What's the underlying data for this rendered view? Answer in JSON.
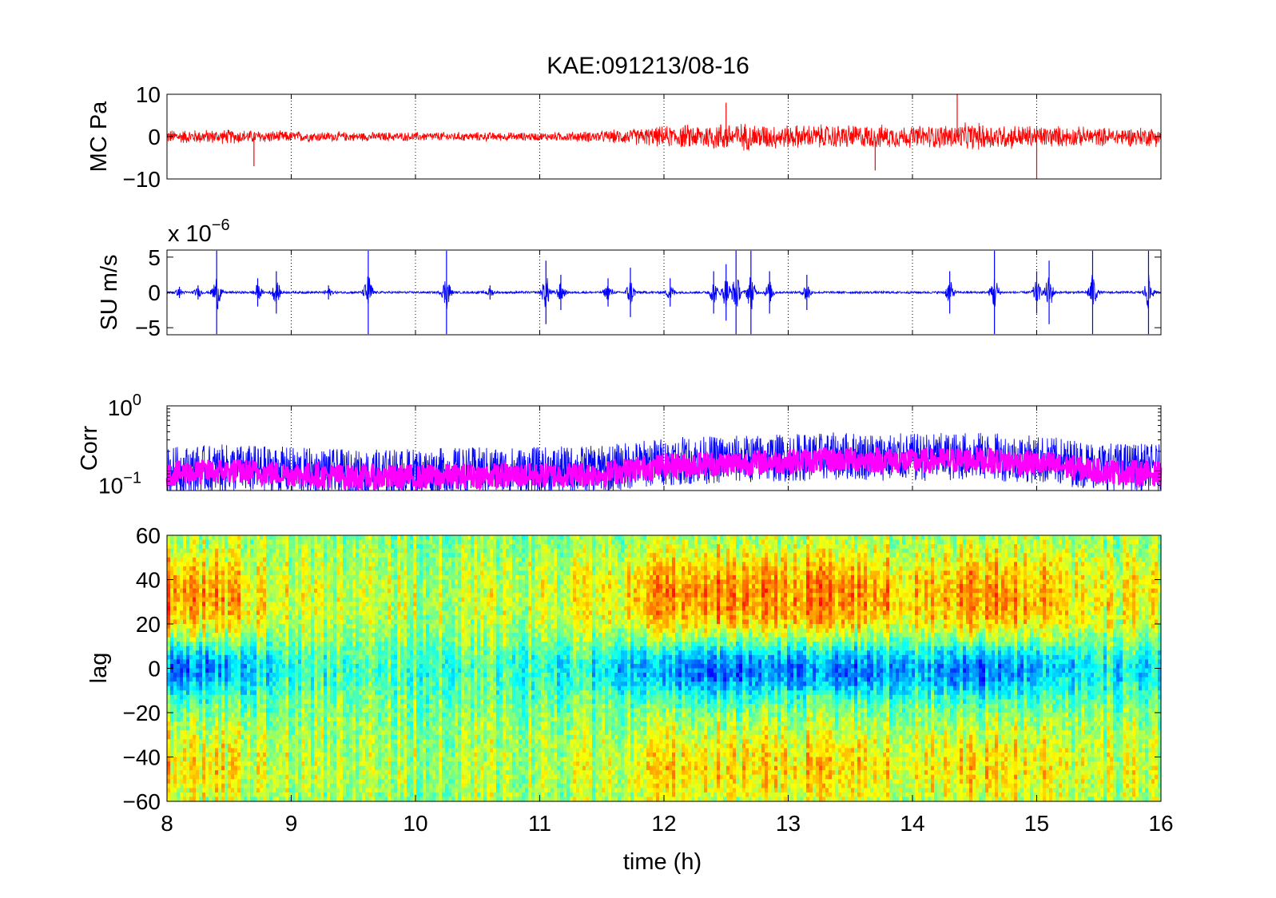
{
  "figure": {
    "title": "KAE:091213/08-16",
    "xlabel": "time (h)",
    "x_ticks": [
      "8",
      "9",
      "10",
      "11",
      "12",
      "13",
      "14",
      "15",
      "16"
    ],
    "xlim": [
      8,
      16
    ]
  },
  "chart_data": [
    {
      "type": "line",
      "ylabel": "MC Pa",
      "ylim": [
        -10,
        10
      ],
      "y_ticks": [
        "10",
        "0",
        "−10"
      ],
      "y_tick_values": [
        10,
        0,
        -10
      ],
      "grid": "vertical dotted at each hour",
      "series": [
        {
          "color": "#ff0000",
          "x": [
            8,
            8.5,
            9,
            9.5,
            10,
            10.5,
            11,
            11.5,
            12,
            12.5,
            13,
            13.5,
            14,
            14.5,
            15,
            15.5,
            16
          ],
          "envelope": [
            1.5,
            1.6,
            1.2,
            1.0,
            1.0,
            1.0,
            0.9,
            1.3,
            2.3,
            3.2,
            2.6,
            2.7,
            2.4,
            3.0,
            2.5,
            2.0,
            2.2
          ]
        }
      ],
      "spikes": [
        {
          "x": 8.7,
          "y": -7
        },
        {
          "x": 12.5,
          "y": 8
        },
        {
          "x": 13.7,
          "y": -8
        },
        {
          "x": 14.36,
          "y": 10
        },
        {
          "x": 15.0,
          "y": -10
        }
      ]
    },
    {
      "type": "line",
      "ylabel": "SU m/s",
      "scale_label": "x 10",
      "scale_exponent": "−6",
      "ylim": [
        -6,
        6
      ],
      "y_ticks": [
        "5",
        "0",
        "−5"
      ],
      "y_tick_values": [
        5,
        0,
        -5
      ],
      "grid": "vertical dotted at each hour",
      "series": [
        {
          "color": "#0000ff",
          "baseline_noise": 0.15,
          "bursts": [
            {
              "x": 8.1,
              "amp": 0.8
            },
            {
              "x": 8.25,
              "amp": 1.0
            },
            {
              "x": 8.4,
              "amp": 6
            },
            {
              "x": 8.73,
              "amp": 2.0
            },
            {
              "x": 8.88,
              "amp": 3.0
            },
            {
              "x": 9.3,
              "amp": 1.0
            },
            {
              "x": 9.62,
              "amp": 6
            },
            {
              "x": 10.25,
              "amp": 6
            },
            {
              "x": 10.6,
              "amp": 1.0
            },
            {
              "x": 11.05,
              "amp": 4.5
            },
            {
              "x": 11.17,
              "amp": 2.5
            },
            {
              "x": 11.55,
              "amp": 2.0
            },
            {
              "x": 11.73,
              "amp": 3.5
            },
            {
              "x": 12.05,
              "amp": 2.0
            },
            {
              "x": 12.4,
              "amp": 3.0
            },
            {
              "x": 12.5,
              "amp": 4.0
            },
            {
              "x": 12.58,
              "amp": 6
            },
            {
              "x": 12.7,
              "amp": 6
            },
            {
              "x": 12.85,
              "amp": 3.0
            },
            {
              "x": 13.15,
              "amp": 2.5
            },
            {
              "x": 14.3,
              "amp": 3.0
            },
            {
              "x": 14.66,
              "amp": 6
            },
            {
              "x": 15.0,
              "amp": 3.0
            },
            {
              "x": 15.1,
              "amp": 4.5
            },
            {
              "x": 15.45,
              "amp": 6
            },
            {
              "x": 15.9,
              "amp": 6
            }
          ]
        }
      ]
    },
    {
      "type": "line",
      "ylabel": "Corr",
      "yscale": "log",
      "ylim": [
        0.05,
        1
      ],
      "y_ticks": [
        {
          "base": "10",
          "exp": "0",
          "value": 1
        },
        {
          "base": "10",
          "exp": "−1",
          "value": 0.1
        }
      ],
      "grid": "vertical dotted at each hour",
      "series": [
        {
          "color": "#0000ff",
          "x": [
            8,
            8.5,
            9,
            9.5,
            10,
            10.5,
            11,
            11.5,
            12,
            12.5,
            13,
            13.5,
            14,
            14.5,
            15,
            15.5,
            16
          ],
          "level": [
            0.1,
            0.11,
            0.1,
            0.09,
            0.095,
            0.1,
            0.1,
            0.105,
            0.14,
            0.15,
            0.16,
            0.17,
            0.16,
            0.17,
            0.15,
            0.12,
            0.11
          ]
        },
        {
          "color": "#ff00ff",
          "x": [
            8,
            8.5,
            9,
            9.5,
            10,
            10.5,
            11,
            11.5,
            12,
            12.5,
            13,
            13.5,
            14,
            14.5,
            15,
            15.5,
            16
          ],
          "level": [
            0.09,
            0.1,
            0.09,
            0.08,
            0.08,
            0.085,
            0.085,
            0.09,
            0.12,
            0.13,
            0.14,
            0.15,
            0.14,
            0.15,
            0.13,
            0.1,
            0.09
          ]
        }
      ]
    },
    {
      "type": "heatmap",
      "ylabel": "lag",
      "ylim": [
        -60,
        60
      ],
      "y_ticks": [
        "60",
        "40",
        "20",
        "0",
        "−20",
        "−40",
        "−60"
      ],
      "y_tick_values": [
        60,
        40,
        20,
        0,
        -20,
        -40,
        -60
      ],
      "colormap": "jet",
      "intensity_by_hour": {
        "x": [
          8,
          8.5,
          9,
          9.5,
          10,
          10.5,
          11,
          11.5,
          12,
          12.5,
          13,
          13.5,
          14,
          14.5,
          15,
          15.5,
          16
        ],
        "strength": [
          0.9,
          0.7,
          0.3,
          0.2,
          0.2,
          0.2,
          0.3,
          0.4,
          0.8,
          0.9,
          0.8,
          0.9,
          0.6,
          0.9,
          0.7,
          0.4,
          0.5
        ]
      }
    }
  ]
}
